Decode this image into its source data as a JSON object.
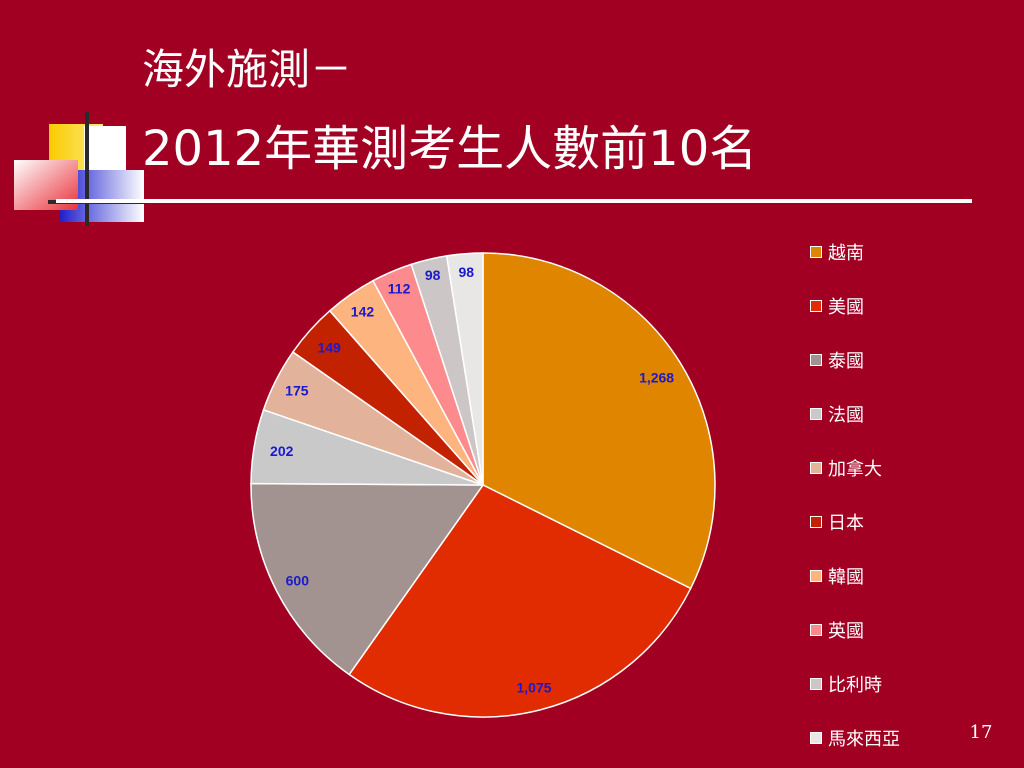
{
  "slide": {
    "title_line1": "海外施測－",
    "title_line2": "2012年華測考生人數前10名",
    "page_number": "17"
  },
  "colors": {
    "background": "#a10023",
    "title_text": "#ffffff",
    "data_label": "#1a1acc"
  },
  "chart_data": {
    "type": "pie",
    "title": "",
    "categories": [
      "越南",
      "美國",
      "泰國",
      "法國",
      "加拿大",
      "日本",
      "韓國",
      "英國",
      "比利時",
      "馬來西亞"
    ],
    "values": [
      1268,
      1075,
      600,
      202,
      175,
      149,
      142,
      112,
      98,
      98
    ],
    "value_labels": [
      "1,268",
      "1,075",
      "600",
      "202",
      "175",
      "149",
      "142",
      "112",
      "98",
      "98"
    ],
    "colors": [
      "#df8500",
      "#e02c00",
      "#a39390",
      "#c9c9c9",
      "#e3b29a",
      "#c32200",
      "#feb47f",
      "#fd8a8c",
      "#cdc6c6",
      "#e9e6e6"
    ],
    "legend": {
      "position": "right"
    },
    "start_angle_deg": 0,
    "direction": "clockwise"
  }
}
